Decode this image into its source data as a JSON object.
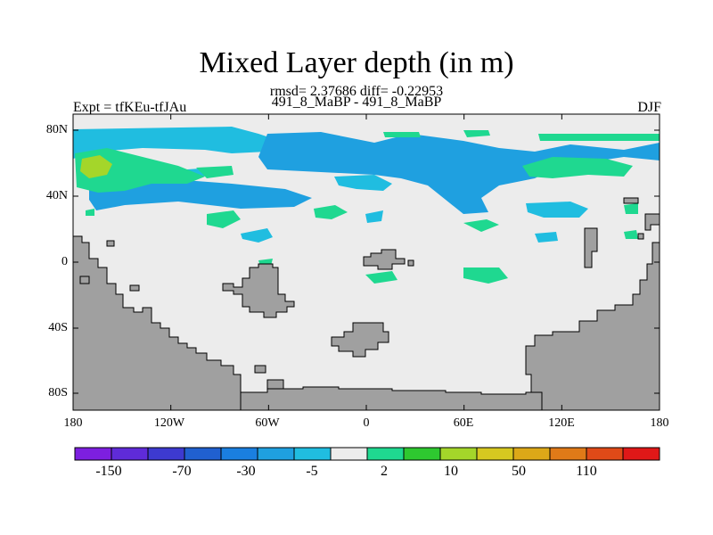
{
  "title": "Mixed Layer depth (in m)",
  "stats": "rmsd= 2.37686 diff= -0.22953",
  "subtitle": "491_8_MaBP - 491_8_MaBP",
  "expt": "Expt = tfKEu-tfJAu",
  "season": "DJF",
  "lat_ticks": [
    "80N",
    "40N",
    "0",
    "40S",
    "80S"
  ],
  "lon_ticks": [
    "180",
    "120W",
    "60W",
    "0",
    "60E",
    "120E",
    "180"
  ],
  "colorbar": {
    "colors": [
      "#7d1fe0",
      "#5f2bd8",
      "#3d3ad0",
      "#2060d0",
      "#1a7fe0",
      "#1fa0e0",
      "#20bde0",
      "#ececec",
      "#1fd890",
      "#2ec830",
      "#a4d62a",
      "#d6c820",
      "#dca818",
      "#e07a18",
      "#e04a18",
      "#e01818"
    ],
    "labels": [
      "-150",
      "-70",
      "-30",
      "-5",
      "2",
      "10",
      "50",
      "110"
    ]
  },
  "map_colors": {
    "land": "#a0a0a0",
    "ocean_neutral": "#ececec",
    "blue": "#20bde0",
    "blue_dark": "#1fa0e0",
    "green": "#1fd890",
    "yellow_green": "#a4d62a",
    "outline": "#000000"
  }
}
